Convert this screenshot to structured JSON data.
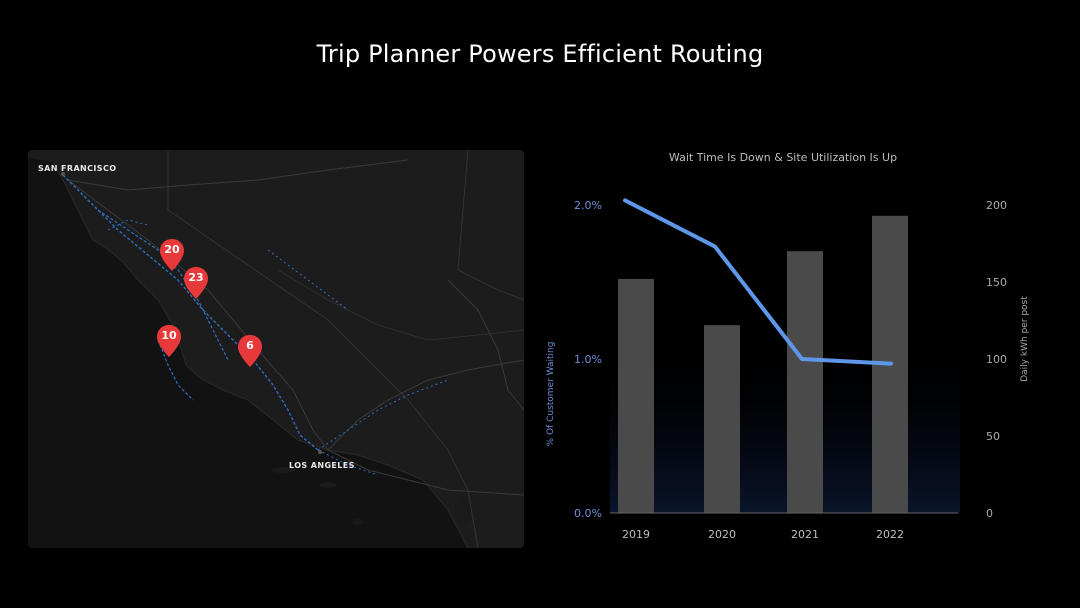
{
  "page": {
    "title": "Trip Planner Powers Efficient Routing"
  },
  "map": {
    "city_labels": {
      "san_francisco": "SAN FRANCISCO",
      "los_angeles": "LOS ANGELES"
    },
    "markers": [
      {
        "id": "marker-20",
        "count": "20"
      },
      {
        "id": "marker-23",
        "count": "23"
      },
      {
        "id": "marker-10",
        "count": "10"
      },
      {
        "id": "marker-6",
        "count": "6"
      }
    ],
    "colors": {
      "background": "#141414",
      "land": "#1c1c1c",
      "sea": "#111111",
      "road_major": "#3a3a3a",
      "road_charging": "#2d6fc2",
      "marker": "#e8393a"
    }
  },
  "chart_data": {
    "type": "bar",
    "title": "Wait Time Is Down & Site Utilization Is Up",
    "categories": [
      "2019",
      "2020",
      "2021",
      "2022"
    ],
    "bar_series": {
      "axis": "right",
      "ylabel": "Daily kWh per post",
      "values": [
        152,
        122,
        170,
        193
      ],
      "ylim": [
        0,
        200
      ],
      "ticks": [
        "0",
        "50",
        "100",
        "150",
        "200"
      ],
      "color": "#4a4a4a"
    },
    "line_series": {
      "axis": "left",
      "ylabel": "% Of Customer Waiting",
      "values": [
        2.03,
        1.73,
        1.0,
        0.97
      ],
      "ylim": [
        0,
        2.0
      ],
      "ticks": [
        "0.0%",
        "1.0%",
        "2.0%"
      ],
      "color": "#5f97e8"
    },
    "grid": false,
    "legend": "none"
  }
}
